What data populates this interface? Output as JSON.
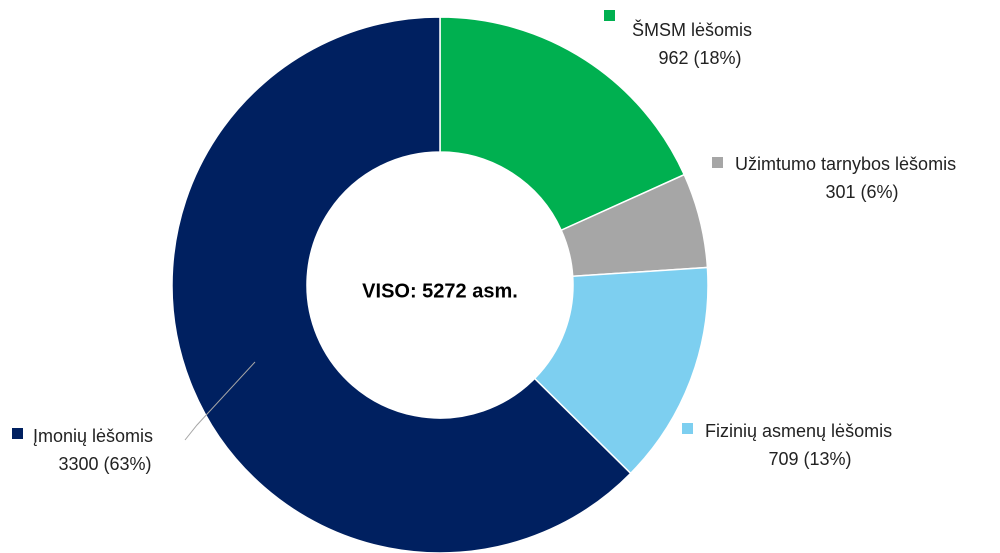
{
  "chart_data": {
    "type": "donut",
    "center_label": "VISO: 5272 asm.",
    "categories": [
      "ŠMSM lėšomis",
      "Užimtumo tarnybos lėšomis",
      "Fizinių asmenų lėšomis",
      "Įmonių lėšomis"
    ],
    "values": [
      962,
      301,
      709,
      3300
    ],
    "value_labels": [
      "962 (18%)",
      "301 (6%)",
      "709 (13%)",
      "3300 (63%)"
    ],
    "colors": [
      "#00b050",
      "#a6a6a6",
      "#7dcff0",
      "#002060"
    ]
  }
}
